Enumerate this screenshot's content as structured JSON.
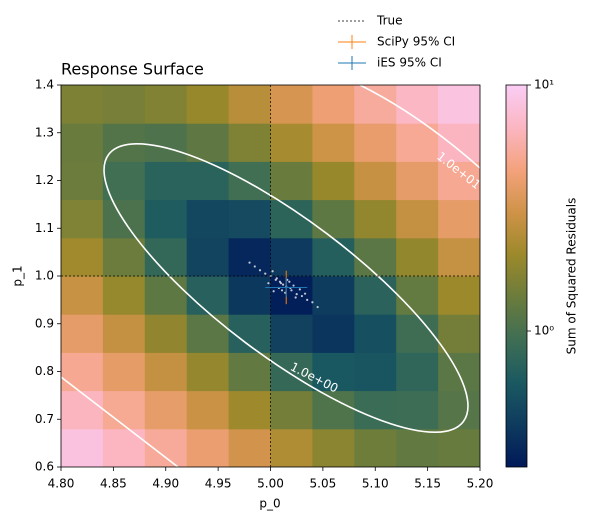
{
  "chart_data": {
    "type": "heatmap",
    "title": "Response Surface",
    "x_label": "p_0",
    "y_label": "p_1",
    "colorbar_label": "Sum of Squared Residuals",
    "xlim": [
      4.8,
      5.2
    ],
    "ylim": [
      0.6,
      1.4
    ],
    "xticks": [
      {
        "value": 4.8,
        "label": "4.80"
      },
      4.85,
      {
        "value": 4.9,
        "label": "4.90"
      },
      4.95,
      {
        "value": 5,
        "label": "5.00"
      },
      5.05,
      {
        "value": 5.1,
        "label": "5.10"
      },
      5.15,
      {
        "value": 5.2,
        "label": "5.20"
      }
    ],
    "yticks": [
      0.6,
      0.7,
      0.8,
      0.9,
      {
        "value": 1,
        "label": "1.0"
      },
      1.1,
      1.2,
      1.3,
      1.4
    ],
    "color_scale": "log",
    "clim": [
      0.28,
      10
    ],
    "cticks": [
      {
        "value": 1,
        "label": "10⁰"
      },
      {
        "value": 10,
        "label": "10¹"
      }
    ],
    "colormap": [
      "#011959",
      "#0e3b5e",
      "#1b5961",
      "#3f6e54",
      "#6b7c3c",
      "#9c892b",
      "#cf9348",
      "#f4a27c",
      "#fbb6c2",
      "#facdf5"
    ],
    "x": [
      4.82,
      4.86,
      4.9,
      4.94,
      4.98,
      5.02,
      5.06,
      5.1,
      5.14,
      5.18
    ],
    "y": [
      0.64,
      0.72,
      0.8,
      0.88,
      0.96,
      1.04,
      1.12,
      1.2,
      1.28,
      1.36
    ],
    "z": [
      [
        8.34,
        6.72,
        5.32,
        4.12,
        3.13,
        2.35,
        1.78,
        1.42,
        1.27,
        1.33
      ],
      [
        6.61,
        5.16,
        3.92,
        2.89,
        2.08,
        1.47,
        1.07,
        0.88,
        0.9,
        1.13
      ],
      [
        5.12,
        3.84,
        2.78,
        1.92,
        1.27,
        0.83,
        0.61,
        0.59,
        0.78,
        1.19
      ],
      [
        3.88,
        2.77,
        1.87,
        1.19,
        0.71,
        0.45,
        0.39,
        0.54,
        0.91,
        1.48
      ],
      [
        2.88,
        1.95,
        1.22,
        0.71,
        0.4,
        0.3,
        0.42,
        0.74,
        1.28,
        2.02
      ],
      [
        2.13,
        1.37,
        0.81,
        0.47,
        0.33,
        0.41,
        0.69,
        1.19,
        1.9,
        2.81
      ],
      [
        1.63,
        1.03,
        0.65,
        0.48,
        0.51,
        0.76,
        1.22,
        1.88,
        2.76,
        3.85
      ],
      [
        1.37,
        0.94,
        0.73,
        0.73,
        0.94,
        1.36,
        1.98,
        2.82,
        3.87,
        5.13
      ],
      [
        1.35,
        1.1,
        1.06,
        1.23,
        1.61,
        2.2,
        3.0,
        4.01,
        5.22,
        6.65
      ],
      [
        1.59,
        1.51,
        1.64,
        1.98,
        2.53,
        3.29,
        4.25,
        5.44,
        6.82,
        8.42
      ]
    ],
    "contours": [
      {
        "value": 1,
        "label": "1.0e+00"
      },
      {
        "value": 10,
        "label": "1.0e+01"
      }
    ],
    "samples": {
      "color": "#ffffff",
      "x": [
        5.01,
        5.015,
        5.005,
        5.02,
        5.0,
        4.995,
        5.025,
        5.03,
        5.012,
        5.008,
        5.018,
        5.003,
        4.99,
        4.985,
        5.035,
        5.04,
        5.022,
        5.014,
        5.006,
        5.028,
        4.998,
        5.016,
        5.045,
        4.98,
        5.011,
        5.024,
        5.002,
        5.033,
        5.019,
        5.009
      ],
      "y": [
        0.985,
        0.978,
        0.992,
        0.97,
        1.0,
        1.005,
        0.962,
        0.958,
        0.982,
        0.975,
        0.988,
        0.968,
        1.012,
        1.02,
        0.95,
        0.945,
        0.98,
        0.965,
        0.995,
        0.972,
        0.985,
        0.992,
        0.935,
        1.028,
        0.97,
        0.955,
        1.01,
        0.963,
        0.975,
        0.988
      ]
    },
    "series": [
      {
        "name": "True",
        "color": "#000000",
        "x": 5,
        "y": 1
      },
      {
        "name": "SciPy 95% CI",
        "color": "#ff7f0e",
        "x": 5.015,
        "y": 0.976,
        "xerr": 0.012,
        "yerr": 0.035
      },
      {
        "name": "iES 95% CI",
        "color": "#1f77b4",
        "x": 5.015,
        "y": 0.976,
        "xerr": 0.02,
        "yerr": 0.02
      }
    ]
  }
}
